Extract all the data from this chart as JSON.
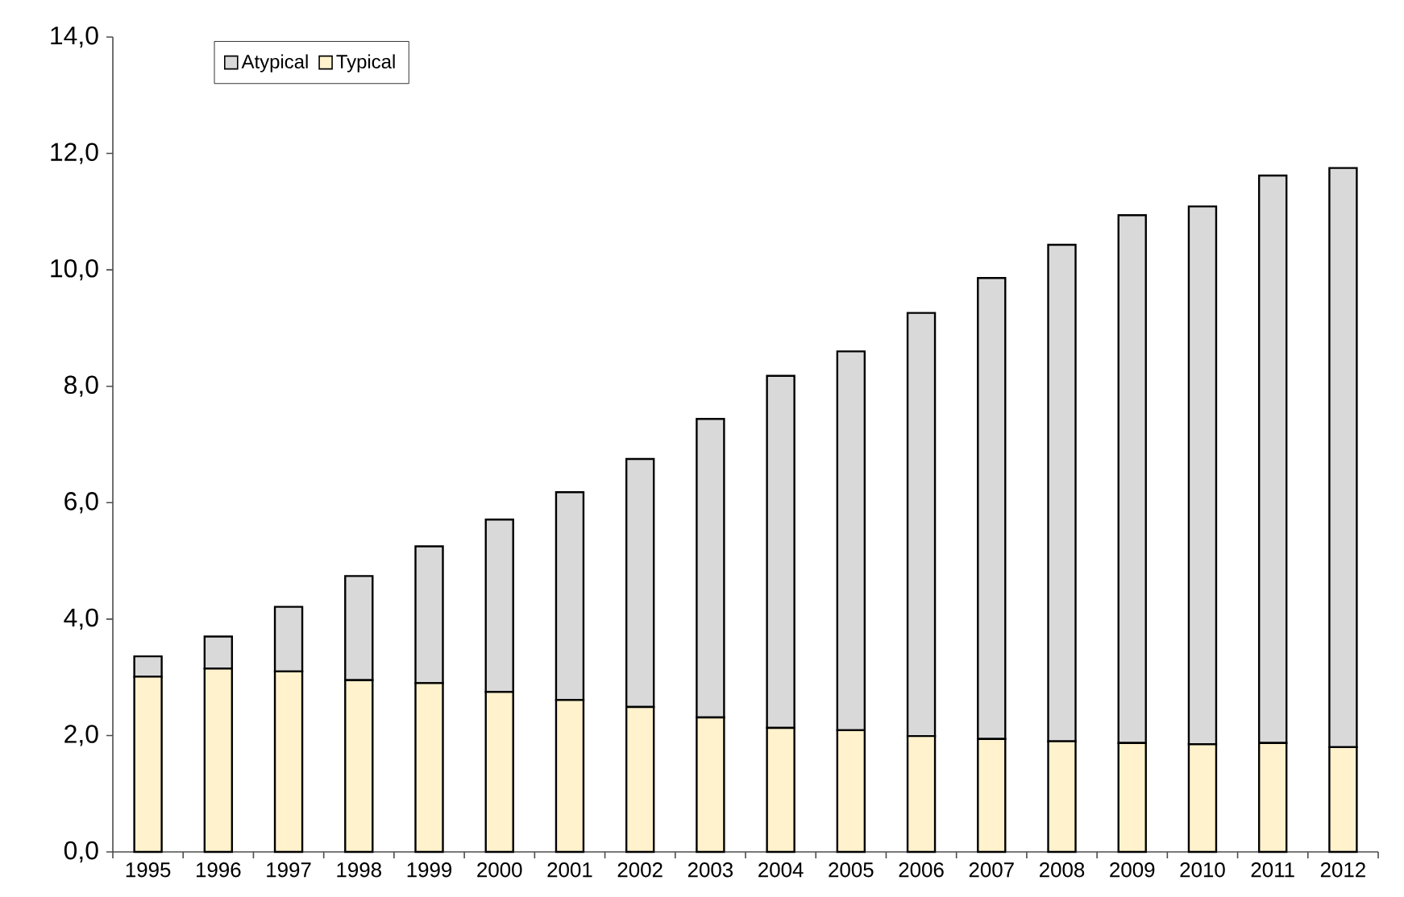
{
  "chart_data": {
    "type": "bar",
    "stacked": true,
    "categories": [
      "1995",
      "1996",
      "1997",
      "1998",
      "1999",
      "2000",
      "2001",
      "2002",
      "2003",
      "2004",
      "2005",
      "2006",
      "2007",
      "2008",
      "2009",
      "2010",
      "2011",
      "2012"
    ],
    "series": [
      {
        "name": "Typical",
        "color": "#fff2cc",
        "values": [
          3.01,
          3.15,
          3.1,
          2.95,
          2.9,
          2.75,
          2.61,
          2.49,
          2.31,
          2.13,
          2.09,
          1.99,
          1.94,
          1.9,
          1.87,
          1.85,
          1.87,
          1.8
        ]
      },
      {
        "name": "Atypical",
        "color": "#d9d9d9",
        "values": [
          0.35,
          0.55,
          1.11,
          1.79,
          2.35,
          2.96,
          3.57,
          4.26,
          5.13,
          6.05,
          6.51,
          7.27,
          7.92,
          8.53,
          9.07,
          9.24,
          9.75,
          9.95
        ]
      }
    ],
    "ylim": [
      0,
      14
    ],
    "yticks": [
      {
        "value": 0,
        "label": "0,0"
      },
      {
        "value": 2,
        "label": "2,0"
      },
      {
        "value": 4,
        "label": "4,0"
      },
      {
        "value": 6,
        "label": "6,0"
      },
      {
        "value": 8,
        "label": "8,0"
      },
      {
        "value": 10,
        "label": "10,0"
      },
      {
        "value": 12,
        "label": "12,0"
      },
      {
        "value": 14,
        "label": "14,0"
      }
    ],
    "grid": false,
    "legend": "top left"
  }
}
